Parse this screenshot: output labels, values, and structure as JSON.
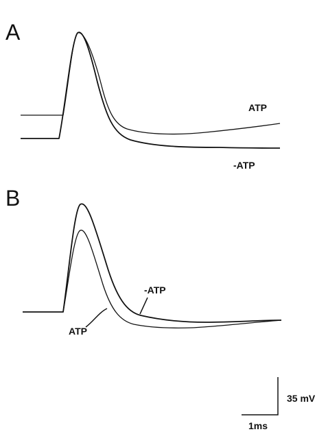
{
  "panels": [
    {
      "label": "A",
      "traces": [
        {
          "label": "ATP"
        },
        {
          "label": "-ATP"
        }
      ]
    },
    {
      "label": "B",
      "traces": [
        {
          "label": "-ATP"
        },
        {
          "label": "ATP"
        }
      ]
    }
  ],
  "scale_bar": {
    "voltage": "35 mV",
    "time": "1ms"
  }
}
